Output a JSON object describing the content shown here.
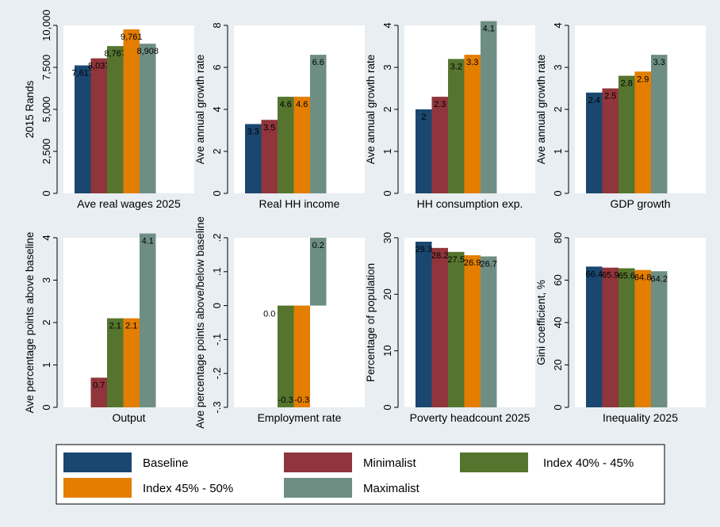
{
  "chart_data": [
    {
      "type": "bar",
      "xlabel": "Ave real wages 2025",
      "ylabel": "2015 Rands",
      "ylim": [
        0,
        10000
      ],
      "yticks": [
        0,
        2500,
        5000,
        7500,
        10000
      ],
      "ytick_labels": [
        "0",
        "2,500",
        "5,000",
        "7,500",
        "10,000"
      ],
      "series": [
        {
          "name": "Baseline",
          "value": 7617,
          "label": "7,617"
        },
        {
          "name": "Minimalist",
          "value": 8037,
          "label": "8,037"
        },
        {
          "name": "Index 40% - 45%",
          "value": 8767,
          "label": "8,767"
        },
        {
          "name": "Index 45% - 50%",
          "value": 9761,
          "label": "9,761"
        },
        {
          "name": "Maximalist",
          "value": 8908,
          "label": "8,908"
        }
      ]
    },
    {
      "type": "bar",
      "xlabel": "Real HH income",
      "ylabel": "Ave annual growth rate",
      "ylim": [
        0,
        8
      ],
      "yticks": [
        0,
        2,
        4,
        6,
        8
      ],
      "ytick_labels": [
        "0",
        "2",
        "4",
        "6",
        "8"
      ],
      "series": [
        {
          "name": "Baseline",
          "value": 3.3,
          "label": "3.3"
        },
        {
          "name": "Minimalist",
          "value": 3.5,
          "label": "3.5"
        },
        {
          "name": "Index 40% - 45%",
          "value": 4.6,
          "label": "4.6"
        },
        {
          "name": "Index 45% - 50%",
          "value": 4.6,
          "label": "4.6"
        },
        {
          "name": "Maximalist",
          "value": 6.6,
          "label": "6.6"
        }
      ]
    },
    {
      "type": "bar",
      "xlabel": "HH consumption exp.",
      "ylabel": "Ave annual growth rate",
      "ylim": [
        0,
        4
      ],
      "yticks": [
        0,
        1,
        2,
        3,
        4
      ],
      "ytick_labels": [
        "0",
        "1",
        "2",
        "3",
        "4"
      ],
      "series": [
        {
          "name": "Baseline",
          "value": 2,
          "label": "2"
        },
        {
          "name": "Minimalist",
          "value": 2.3,
          "label": "2.3"
        },
        {
          "name": "Index 40% - 45%",
          "value": 3.2,
          "label": "3.2"
        },
        {
          "name": "Index 45% - 50%",
          "value": 3.3,
          "label": "3.3"
        },
        {
          "name": "Maximalist",
          "value": 4.1,
          "label": "4.1"
        }
      ]
    },
    {
      "type": "bar",
      "xlabel": "GDP growth",
      "ylabel": "Ave annual growth rate",
      "ylim": [
        0,
        4
      ],
      "yticks": [
        0,
        1,
        2,
        3,
        4
      ],
      "ytick_labels": [
        "0",
        "1",
        "2",
        "3",
        "4"
      ],
      "series": [
        {
          "name": "Baseline",
          "value": 2.4,
          "label": "2.4"
        },
        {
          "name": "Minimalist",
          "value": 2.5,
          "label": "2.5"
        },
        {
          "name": "Index 40% - 45%",
          "value": 2.8,
          "label": "2.8"
        },
        {
          "name": "Index 45% - 50%",
          "value": 2.9,
          "label": "2.9"
        },
        {
          "name": "Maximalist",
          "value": 3.3,
          "label": "3.3"
        }
      ]
    },
    {
      "type": "bar",
      "xlabel": "Output",
      "ylabel": "Ave percentage points above baseline",
      "ylim": [
        0,
        4
      ],
      "yticks": [
        0,
        1,
        2,
        3,
        4
      ],
      "ytick_labels": [
        "0",
        "1",
        "2",
        "3",
        "4"
      ],
      "series": [
        {
          "name": "Baseline",
          "value": null,
          "label": ""
        },
        {
          "name": "Minimalist",
          "value": 0.7,
          "label": "0.7"
        },
        {
          "name": "Index 40% - 45%",
          "value": 2.1,
          "label": "2.1"
        },
        {
          "name": "Index 45% - 50%",
          "value": 2.1,
          "label": "2.1"
        },
        {
          "name": "Maximalist",
          "value": 4.1,
          "label": "4.1"
        }
      ]
    },
    {
      "type": "bar",
      "xlabel": "Employment rate",
      "ylabel": "Ave percentage points above/below baseline",
      "ylim": [
        -0.3,
        0.2
      ],
      "yticks": [
        -0.3,
        -0.2,
        -0.1,
        0,
        0.1,
        0.2
      ],
      "ytick_labels": [
        "-.3",
        "-.2",
        "-.1",
        "0",
        ".1",
        ".2"
      ],
      "series": [
        {
          "name": "Baseline",
          "value": null,
          "label": ""
        },
        {
          "name": "Minimalist",
          "value": 0.0,
          "label": "0.0"
        },
        {
          "name": "Index 40% - 45%",
          "value": -0.3,
          "label": "-0.3"
        },
        {
          "name": "Index 45% - 50%",
          "value": -0.3,
          "label": "-0.3"
        },
        {
          "name": "Maximalist",
          "value": 0.2,
          "label": "0.2"
        }
      ]
    },
    {
      "type": "bar",
      "xlabel": "Poverty headcount 2025",
      "ylabel": "Percentage of population",
      "ylim": [
        0,
        30
      ],
      "yticks": [
        0,
        10,
        20,
        30
      ],
      "ytick_labels": [
        "0",
        "10",
        "20",
        "30"
      ],
      "series": [
        {
          "name": "Baseline",
          "value": 29.3,
          "label": "29.3"
        },
        {
          "name": "Minimalist",
          "value": 28.2,
          "label": "28.2"
        },
        {
          "name": "Index 40% - 45%",
          "value": 27.5,
          "label": "27.5"
        },
        {
          "name": "Index 45% - 50%",
          "value": 26.9,
          "label": "26.9"
        },
        {
          "name": "Maximalist",
          "value": 26.7,
          "label": "26.7"
        }
      ]
    },
    {
      "type": "bar",
      "xlabel": "Inequality 2025",
      "ylabel": "Gini coefficient, %",
      "ylim": [
        0,
        80
      ],
      "yticks": [
        0,
        20,
        40,
        60,
        80
      ],
      "ytick_labels": [
        "0",
        "20",
        "40",
        "60",
        "80"
      ],
      "series": [
        {
          "name": "Baseline",
          "value": 66.4,
          "label": "66.4"
        },
        {
          "name": "Minimalist",
          "value": 65.9,
          "label": "65.9"
        },
        {
          "name": "Index 40% - 45%",
          "value": 65.6,
          "label": "65.6"
        },
        {
          "name": "Index 45% - 50%",
          "value": 64.8,
          "label": "64.8"
        },
        {
          "name": "Maximalist",
          "value": 64.2,
          "label": "64.2"
        }
      ]
    }
  ],
  "legend": {
    "placement": "bottom",
    "items": [
      {
        "label": "Baseline",
        "color": "#1a476f"
      },
      {
        "label": "Minimalist",
        "color": "#90353b"
      },
      {
        "label": "Index 40% - 45%",
        "color": "#55752f"
      },
      {
        "label": "Index 45% - 50%",
        "color": "#e37e00"
      },
      {
        "label": "Maximalist",
        "color": "#6e8e84"
      }
    ]
  },
  "colors": {
    "background": "#e8eef2",
    "plot_background": "#ffffff"
  }
}
